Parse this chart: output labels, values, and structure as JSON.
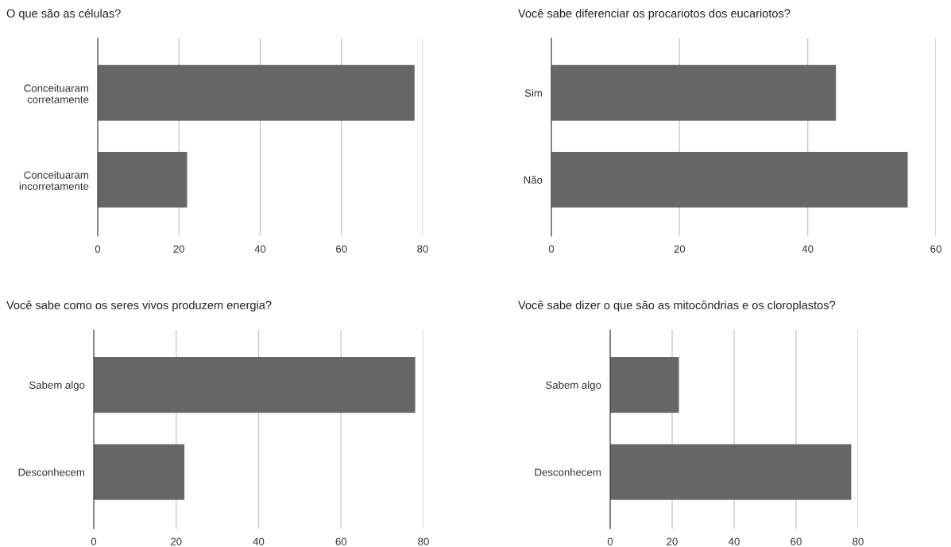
{
  "chart_data": [
    {
      "type": "bar",
      "orientation": "horizontal",
      "title": "O que são as células?",
      "categories": [
        "Conceituaram\ncorretamente",
        "Conceituaram\nincorretamente"
      ],
      "values": [
        78,
        22
      ],
      "color": "#666666",
      "xlim": [
        0,
        80
      ],
      "xticks": [
        0,
        20,
        40,
        60,
        80
      ],
      "grid": "x"
    },
    {
      "type": "bar",
      "orientation": "horizontal",
      "title": "Você sabe diferenciar os procariotos dos eucariotos?",
      "categories": [
        "Sim",
        "Não"
      ],
      "values": [
        44.4,
        55.6
      ],
      "color": "#666666",
      "xlim": [
        0,
        60
      ],
      "xticks": [
        0,
        20,
        40,
        60
      ],
      "grid": "x"
    },
    {
      "type": "bar",
      "orientation": "horizontal",
      "title": "Você sabe como os seres vivos produzem energia?",
      "categories": [
        "Sabem algo",
        "Desconhecem"
      ],
      "values": [
        78,
        22
      ],
      "color": "#666666",
      "xlim": [
        0,
        80
      ],
      "xticks": [
        0,
        20,
        40,
        60,
        80
      ],
      "grid": "x"
    },
    {
      "type": "bar",
      "orientation": "horizontal",
      "title": "Você sabe dizer o que são as mitocôndrias e os cloroplastos?",
      "categories": [
        "Sabem algo",
        "Desconhecem"
      ],
      "values": [
        22.2,
        77.8
      ],
      "color": "#666666",
      "xlim": [
        0,
        80
      ],
      "xticks": [
        0,
        20,
        40,
        60,
        80
      ],
      "grid": "x"
    }
  ]
}
